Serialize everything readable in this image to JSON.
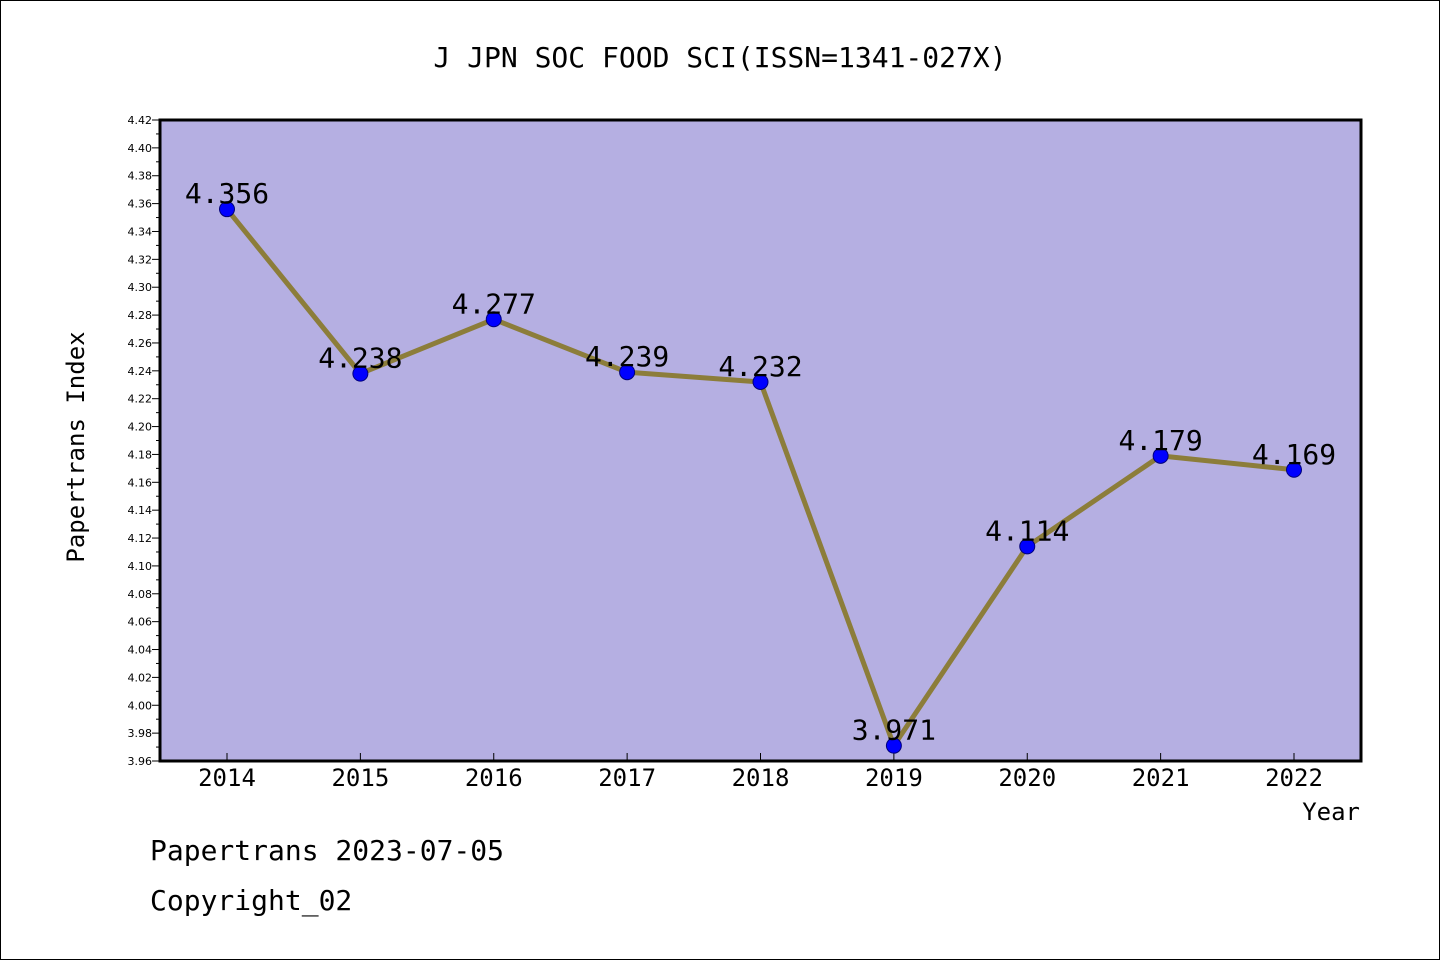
{
  "colors": {
    "plot_background": "#b5afe2",
    "line": "#8c7d3a",
    "marker": "#0000ff",
    "marker_edge": "#00007a",
    "frame": "#000000"
  },
  "footer": {
    "line1": "Papertrans 2023-07-05",
    "line2": "Copyright_02"
  },
  "chart_data": {
    "type": "line",
    "title": "J JPN SOC FOOD SCI(ISSN=1341-027X)",
    "xlabel": "Year",
    "ylabel": "Papertrans Index",
    "categories": [
      "2014",
      "2015",
      "2016",
      "2017",
      "2018",
      "2019",
      "2020",
      "2021",
      "2022"
    ],
    "series": [
      {
        "values": [
          4.356,
          4.238,
          4.277,
          4.239,
          4.232,
          3.971,
          4.114,
          4.179,
          4.169
        ],
        "labels": [
          "4.356",
          "4.238",
          "4.277",
          "4.239",
          "4.232",
          "3.971",
          "4.114",
          "4.179",
          "4.169"
        ]
      }
    ],
    "ylim": [
      3.96,
      4.42
    ],
    "yticks": [
      "3.96",
      "3.98",
      "4.00",
      "4.02",
      "4.04",
      "4.06",
      "4.08",
      "4.10",
      "4.12",
      "4.14",
      "4.16",
      "4.18",
      "4.20",
      "4.22",
      "4.24",
      "4.26",
      "4.28",
      "4.30",
      "4.32",
      "4.34",
      "4.36",
      "4.38",
      "4.40",
      "4.42"
    ],
    "grid": false,
    "legend": "none"
  }
}
